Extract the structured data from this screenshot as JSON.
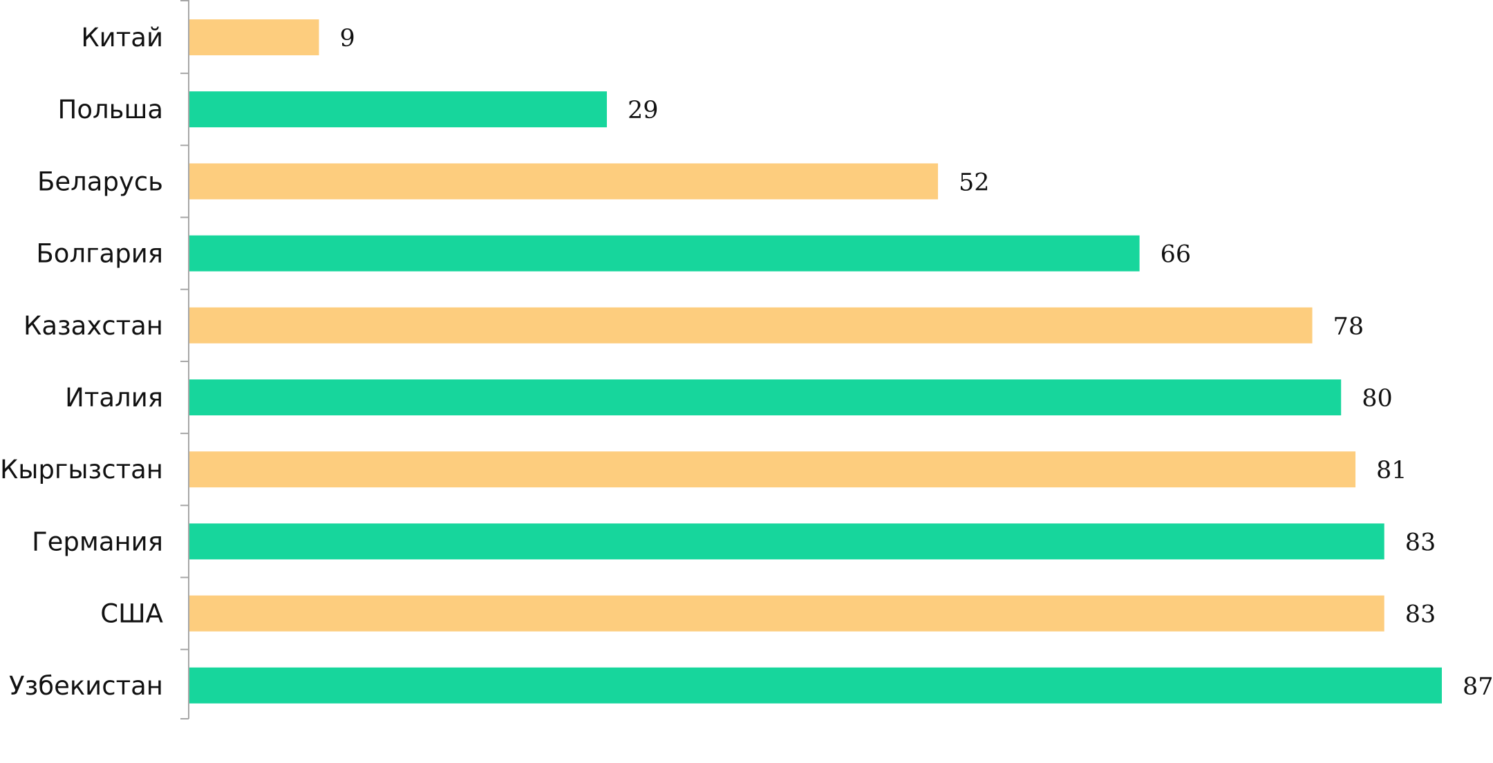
{
  "chart_data": {
    "type": "bar",
    "orientation": "horizontal",
    "title": "",
    "xlabel": "",
    "ylabel": "",
    "categories": [
      "Китай",
      "Польша",
      "Беларусь",
      "Болгария",
      "Казахстан",
      "Италия",
      "Кыргызстан",
      "Германия",
      "США",
      "Узбекистан"
    ],
    "values": [
      9,
      29,
      52,
      66,
      78,
      80,
      81,
      83,
      83,
      87
    ],
    "value_labels": [
      "9",
      "29",
      "52",
      "66",
      "78",
      "80",
      "81",
      "83",
      "83",
      "87"
    ],
    "bar_colors": [
      "#fdcd7e",
      "#17d69c",
      "#fdcd7e",
      "#17d69c",
      "#fdcd7e",
      "#17d69c",
      "#fdcd7e",
      "#17d69c",
      "#fdcd7e",
      "#17d69c"
    ],
    "xlim": [
      0,
      87
    ],
    "grid": false,
    "legend": "none",
    "x_axis_visible": false,
    "axis_color": "#a6a6a6",
    "label_color": "#111111"
  }
}
